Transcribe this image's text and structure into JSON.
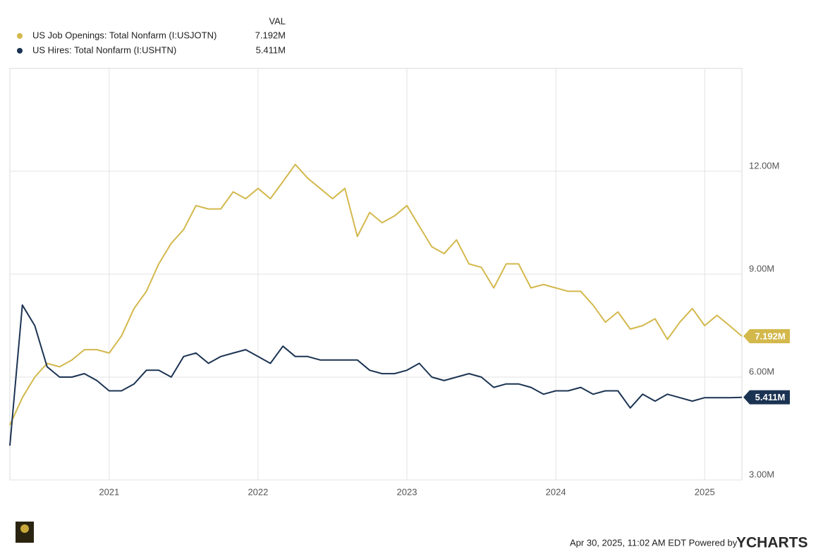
{
  "chart_data": {
    "type": "line",
    "legend_header": "VAL",
    "x": [
      2020.333,
      2020.417,
      2020.5,
      2020.583,
      2020.667,
      2020.75,
      2020.833,
      2020.917,
      2021,
      2021.083,
      2021.167,
      2021.25,
      2021.333,
      2021.417,
      2021.5,
      2021.583,
      2021.667,
      2021.75,
      2021.833,
      2021.917,
      2022,
      2022.083,
      2022.167,
      2022.25,
      2022.333,
      2022.417,
      2022.5,
      2022.583,
      2022.667,
      2022.75,
      2022.833,
      2022.917,
      2023,
      2023.083,
      2023.167,
      2023.25,
      2023.333,
      2023.417,
      2023.5,
      2023.583,
      2023.667,
      2023.75,
      2023.833,
      2023.917,
      2024,
      2024.083,
      2024.167,
      2024.25,
      2024.333,
      2024.417,
      2024.5,
      2024.583,
      2024.667,
      2024.75,
      2024.833,
      2024.917,
      2025,
      2025.083,
      2025.167,
      2025.25
    ],
    "series": [
      {
        "name": "US Job Openings: Total Nonfarm (I:USJOTN)",
        "color": "#d3b84c",
        "last_value_label": "7.192M",
        "values": [
          4.6,
          5.4,
          6.0,
          6.4,
          6.3,
          6.5,
          6.8,
          6.8,
          6.7,
          7.2,
          8.0,
          8.5,
          9.3,
          9.9,
          10.3,
          11.0,
          10.9,
          10.9,
          11.4,
          11.2,
          11.5,
          11.2,
          11.7,
          12.2,
          11.8,
          11.5,
          11.2,
          11.5,
          10.1,
          10.8,
          10.5,
          10.7,
          11.0,
          10.4,
          9.8,
          9.6,
          10.0,
          9.3,
          9.2,
          8.6,
          9.3,
          9.3,
          8.6,
          8.7,
          8.6,
          8.5,
          8.5,
          8.1,
          7.6,
          7.9,
          7.4,
          7.5,
          7.7,
          7.1,
          7.6,
          8.0,
          7.5,
          7.8,
          7.5,
          7.192
        ]
      },
      {
        "name": "US Hires: Total Nonfarm (I:USHTN)",
        "color": "#1b3352",
        "last_value_label": "5.411M",
        "values": [
          4.0,
          8.1,
          7.5,
          6.3,
          6.0,
          6.0,
          6.1,
          5.9,
          5.6,
          5.6,
          5.8,
          6.2,
          6.2,
          6.0,
          6.6,
          6.7,
          6.4,
          6.6,
          6.7,
          6.8,
          6.6,
          6.4,
          6.9,
          6.6,
          6.6,
          6.5,
          6.5,
          6.5,
          6.5,
          6.2,
          6.1,
          6.1,
          6.2,
          6.4,
          6.0,
          5.9,
          6.0,
          6.1,
          6.0,
          5.7,
          5.8,
          5.8,
          5.7,
          5.5,
          5.6,
          5.6,
          5.7,
          5.5,
          5.6,
          5.6,
          5.1,
          5.5,
          5.3,
          5.5,
          5.4,
          5.3,
          5.4,
          5.4,
          5.4,
          5.411
        ]
      }
    ],
    "xlim": [
      2020.333,
      2025.25
    ],
    "xticks": [
      2021,
      2022,
      2023,
      2024,
      2025
    ],
    "ylim": [
      3,
      15
    ],
    "yticks": [
      {
        "value": 3,
        "label": "3.00M"
      },
      {
        "value": 6,
        "label": "6.00M"
      },
      {
        "value": 9,
        "label": "9.00M"
      },
      {
        "value": 12,
        "label": "12.00M"
      }
    ],
    "grid": true,
    "footer": "Apr 30, 2025, 11:02 AM EDT Powered by",
    "brand": "YCHARTS"
  }
}
